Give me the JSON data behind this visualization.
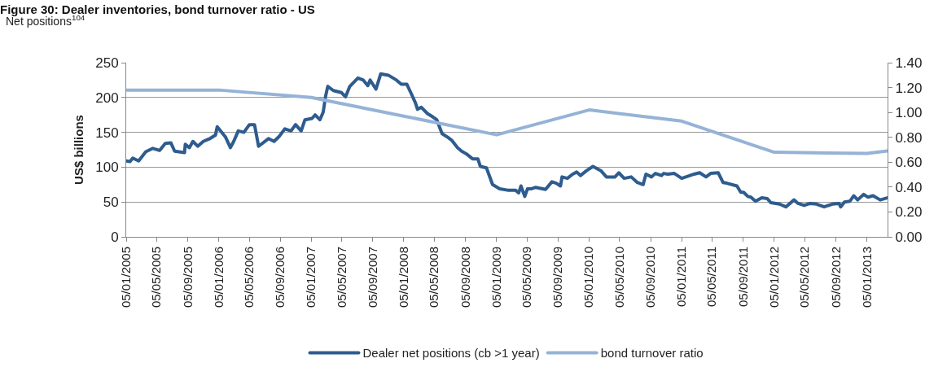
{
  "chart_data": {
    "type": "line",
    "title": "Figure 30: Dealer inventories, bond turnover ratio - US",
    "ylabel": "US$ billions",
    "annotations": [
      "Net positions$^{104}$"
    ],
    "xlim": [
      "2005-01-05",
      "2013-03-27"
    ],
    "xticks": [
      {
        "value": "2005-01-05",
        "label": "05/01/2005"
      },
      {
        "value": "2005-05-05",
        "label": "05/05/2005"
      },
      {
        "value": "2005-09-05",
        "label": "05/09/2005"
      },
      {
        "value": "2006-01-05",
        "label": "05/01/2006"
      },
      {
        "value": "2006-05-05",
        "label": "05/05/2006"
      },
      {
        "value": "2006-09-05",
        "label": "05/09/2006"
      },
      {
        "value": "2007-01-05",
        "label": "05/01/2007"
      },
      {
        "value": "2007-05-05",
        "label": "05/05/2007"
      },
      {
        "value": "2007-09-05",
        "label": "05/09/2007"
      },
      {
        "value": "2008-01-05",
        "label": "05/01/2008"
      },
      {
        "value": "2008-05-05",
        "label": "05/05/2008"
      },
      {
        "value": "2008-09-05",
        "label": "05/09/2008"
      },
      {
        "value": "2009-01-05",
        "label": "05/01/2009"
      },
      {
        "value": "2009-05-05",
        "label": "05/05/2009"
      },
      {
        "value": "2009-09-05",
        "label": "05/09/2009"
      },
      {
        "value": "2010-01-05",
        "label": "05/01/2010"
      },
      {
        "value": "2010-05-05",
        "label": "05/05/2010"
      },
      {
        "value": "2010-09-05",
        "label": "05/09/2010"
      },
      {
        "value": "2011-01-05",
        "label": "05/01/2011"
      },
      {
        "value": "2011-05-05",
        "label": "05/05/2011"
      },
      {
        "value": "2011-09-05",
        "label": "05/09/2011"
      },
      {
        "value": "2012-01-05",
        "label": "05/01/2012"
      },
      {
        "value": "2012-05-05",
        "label": "05/05/2012"
      },
      {
        "value": "2012-09-05",
        "label": "05/09/2012"
      },
      {
        "value": "2013-01-05",
        "label": "05/01/2013"
      }
    ],
    "ylim": [
      0,
      250
    ],
    "yticks": [
      0,
      50,
      100,
      150,
      200,
      250
    ],
    "y2lim": [
      0,
      1.4
    ],
    "y2ticks": [
      {
        "value": 0,
        "label": "0.00"
      },
      {
        "value": 0.2,
        "label": "0.20"
      },
      {
        "value": 0.4,
        "label": "0.40"
      },
      {
        "value": 0.6,
        "label": "0.60"
      },
      {
        "value": 0.8,
        "label": "0.80"
      },
      {
        "value": 1.0,
        "label": "1.00"
      },
      {
        "value": 1.2,
        "label": "1.20"
      },
      {
        "value": 1.4,
        "label": "1.40"
      }
    ],
    "grid": "y",
    "legend": "bottom",
    "marker": "none",
    "line_style": "solid",
    "series": [
      {
        "name": "Dealer net positions (cb >1 year)",
        "color": "#2e5c8e",
        "x": [
          "2005-01-05",
          "2005-01-20",
          "2005-01-31",
          "2005-02-23",
          "2005-03-23",
          "2005-04-20",
          "2005-05-17",
          "2005-06-08",
          "2005-06-30",
          "2005-07-15",
          "2005-08-23",
          "2005-08-26",
          "2005-09-11",
          "2005-09-25",
          "2005-10-14",
          "2005-11-05",
          "2005-12-01",
          "2005-12-23",
          "2005-12-30",
          "2006-02-01",
          "2006-02-20",
          "2006-03-05",
          "2006-03-23",
          "2006-04-14",
          "2006-05-06",
          "2006-05-26",
          "2006-06-11",
          "2006-07-20",
          "2006-08-11",
          "2006-08-31",
          "2006-09-23",
          "2006-10-17",
          "2006-11-04",
          "2006-11-26",
          "2006-12-11",
          "2007-01-08",
          "2007-01-20",
          "2007-02-08",
          "2007-02-21",
          "2007-03-02",
          "2007-03-11",
          "2007-04-02",
          "2007-05-04",
          "2007-05-20",
          "2007-06-06",
          "2007-07-08",
          "2007-07-29",
          "2007-08-16",
          "2007-08-25",
          "2007-09-17",
          "2007-10-06",
          "2007-11-05",
          "2007-12-07",
          "2007-12-26",
          "2008-01-17",
          "2008-02-04",
          "2008-02-20",
          "2008-02-28",
          "2008-03-14",
          "2008-04-07",
          "2008-04-29",
          "2008-05-14",
          "2008-06-04",
          "2008-06-26",
          "2008-07-11",
          "2008-08-04",
          "2008-08-20",
          "2008-09-08",
          "2008-10-02",
          "2008-10-23",
          "2008-11-02",
          "2008-11-26",
          "2008-12-05",
          "2008-12-20",
          "2009-01-17",
          "2009-02-17",
          "2009-03-20",
          "2009-04-02",
          "2009-04-11",
          "2009-04-26",
          "2009-05-07",
          "2009-05-23",
          "2009-06-08",
          "2009-07-17",
          "2009-08-11",
          "2009-08-28",
          "2009-09-14",
          "2009-09-20",
          "2009-10-11",
          "2009-11-01",
          "2009-11-17",
          "2009-12-02",
          "2009-12-26",
          "2010-01-20",
          "2010-02-20",
          "2010-03-14",
          "2010-04-17",
          "2010-05-02",
          "2010-05-23",
          "2010-06-20",
          "2010-07-14",
          "2010-08-06",
          "2010-08-17",
          "2010-09-08",
          "2010-09-23",
          "2010-10-17",
          "2010-10-26",
          "2010-11-11",
          "2010-12-07",
          "2011-01-05",
          "2011-02-07",
          "2011-02-23",
          "2011-03-17",
          "2011-04-11",
          "2011-04-29",
          "2011-05-29",
          "2011-06-17",
          "2011-07-02",
          "2011-08-11",
          "2011-08-26",
          "2011-09-06",
          "2011-09-23",
          "2011-10-05",
          "2011-10-23",
          "2011-11-17",
          "2011-12-08",
          "2011-12-23",
          "2012-01-26",
          "2012-02-20",
          "2012-03-23",
          "2012-04-08",
          "2012-05-02",
          "2012-05-26",
          "2012-06-20",
          "2012-07-20",
          "2012-08-21",
          "2012-09-17",
          "2012-09-23",
          "2012-10-08",
          "2012-10-29",
          "2012-11-14",
          "2012-11-29",
          "2012-12-23",
          "2013-01-08",
          "2013-01-29",
          "2013-02-26",
          "2013-03-26"
        ],
        "values": [
          109,
          108,
          113,
          109,
          122,
          127,
          124,
          134,
          135,
          123,
          121,
          133,
          128,
          137,
          130,
          137,
          141,
          146,
          158,
          143,
          128,
          137,
          152,
          150,
          161,
          161,
          130,
          141,
          137,
          144,
          155,
          152,
          161,
          152,
          168,
          170,
          175,
          168,
          179,
          201,
          216,
          210,
          207,
          201,
          216,
          228,
          225,
          217,
          225,
          212,
          234,
          232,
          225,
          219,
          219,
          205,
          192,
          183,
          186,
          177,
          172,
          168,
          148,
          143,
          139,
          128,
          123,
          119,
          112,
          112,
          101,
          99,
          90,
          75,
          69,
          67,
          67,
          63,
          73,
          58,
          69,
          69,
          71,
          68,
          79,
          77,
          73,
          86,
          84,
          90,
          93,
          88,
          95,
          101,
          95,
          86,
          86,
          92,
          84,
          86,
          78,
          75,
          90,
          86,
          91,
          88,
          91,
          90,
          91,
          84,
          88,
          90,
          92,
          86,
          91,
          92,
          78,
          77,
          73,
          64,
          64,
          58,
          57,
          51,
          56,
          55,
          49,
          47,
          43,
          53,
          48,
          45,
          48,
          47,
          43,
          47,
          48,
          43,
          50,
          51,
          59,
          53,
          61,
          57,
          59,
          53,
          56
        ]
      },
      {
        "name": "bond turnover ratio",
        "color": "#95b3d7",
        "axis": "y2",
        "x": [
          "2005-01-05",
          "2006-01-05",
          "2007-01-05",
          "2008-01-05",
          "2009-01-05",
          "2010-01-05",
          "2011-01-05",
          "2012-01-05",
          "2013-01-05",
          "2013-03-26"
        ],
        "values": [
          1.18,
          1.18,
          1.12,
          0.97,
          0.82,
          1.02,
          0.93,
          0.68,
          0.67,
          0.69
        ]
      }
    ]
  }
}
